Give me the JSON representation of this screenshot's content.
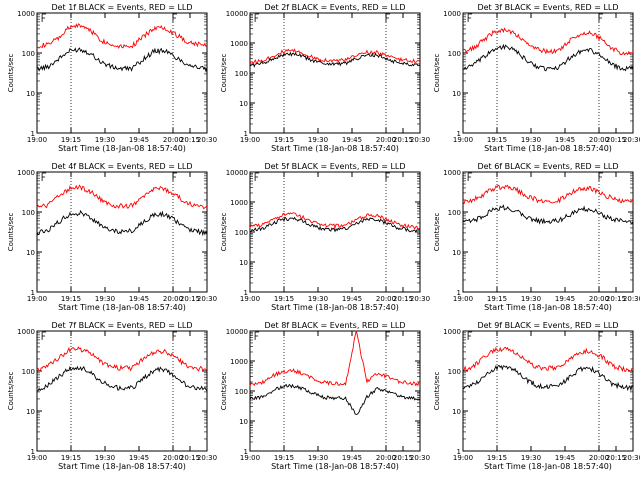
{
  "chart_data": [
    {
      "type": "line",
      "title": "Det 1f BLACK = Events, RED = LLD",
      "xlabel": "Start Time (18-Jan-08 18:57:40)",
      "ylabel": "Counts/sec",
      "x_ticks": [
        "19:00",
        "19:15",
        "19:30",
        "19:45",
        "20:00",
        "20:15",
        "20:30"
      ],
      "y_ticks": [
        "1",
        "10",
        "100",
        "1000"
      ],
      "yscale": "log",
      "ylim": [
        1,
        1000
      ],
      "series": [
        {
          "color": "#ff0000",
          "values": [
            150,
            160,
            230,
            420,
            500,
            380,
            210,
            160,
            150,
            155,
            250,
            420,
            440,
            300,
            200,
            170,
            165
          ]
        },
        {
          "color": "#000000",
          "values": [
            40,
            45,
            70,
            110,
            125,
            100,
            60,
            45,
            40,
            42,
            70,
            110,
            115,
            80,
            55,
            45,
            38
          ]
        }
      ]
    },
    {
      "type": "line",
      "title": "Det 2f BLACK = Events, RED = LLD",
      "xlabel": "Start Time (18-Jan-08 18:57:40)",
      "ylabel": "Counts/sec",
      "x_ticks": [
        "19:00",
        "19:15",
        "19:30",
        "19:45",
        "20:00",
        "20:15",
        "20:30"
      ],
      "y_ticks": [
        "1",
        "10",
        "100",
        "1000",
        "10000"
      ],
      "yscale": "log",
      "ylim": [
        1,
        10000
      ],
      "series": [
        {
          "color": "#ff0000",
          "values": [
            230,
            250,
            350,
            500,
            560,
            450,
            320,
            270,
            260,
            270,
            380,
            500,
            480,
            360,
            280,
            260,
            250
          ]
        },
        {
          "color": "#000000",
          "values": [
            180,
            200,
            280,
            390,
            430,
            350,
            250,
            210,
            200,
            210,
            300,
            390,
            380,
            280,
            220,
            200,
            190
          ]
        }
      ]
    },
    {
      "type": "line",
      "title": "Det 3f BLACK = Events, RED = LLD",
      "xlabel": "Start Time (18-Jan-08 18:57:40)",
      "ylabel": "Counts/sec",
      "x_ticks": [
        "19:00",
        "19:15",
        "19:30",
        "19:45",
        "20:00",
        "20:15",
        "20:30"
      ],
      "y_ticks": [
        "1",
        "10",
        "100",
        "1000"
      ],
      "yscale": "log",
      "ylim": [
        1,
        1000
      ],
      "series": [
        {
          "color": "#ff0000",
          "values": [
            110,
            130,
            220,
            350,
            380,
            290,
            170,
            120,
            110,
            115,
            200,
            300,
            320,
            230,
            130,
            100,
            95
          ]
        },
        {
          "color": "#000000",
          "values": [
            40,
            50,
            80,
            130,
            145,
            110,
            65,
            45,
            40,
            42,
            75,
            110,
            120,
            85,
            50,
            42,
            40
          ]
        }
      ]
    },
    {
      "type": "line",
      "title": "Det 4f BLACK = Events, RED = LLD",
      "xlabel": "Start Time (18-Jan-08 18:57:40)",
      "ylabel": "Counts/sec",
      "x_ticks": [
        "19:00",
        "19:15",
        "19:30",
        "19:45",
        "20:00",
        "20:15",
        "20:30"
      ],
      "y_ticks": [
        "1",
        "10",
        "100",
        "1000"
      ],
      "yscale": "log",
      "ylim": [
        1,
        1000
      ],
      "series": [
        {
          "color": "#ff0000",
          "values": [
            130,
            150,
            240,
            380,
            420,
            330,
            200,
            150,
            140,
            145,
            230,
            370,
            390,
            270,
            170,
            140,
            135
          ]
        },
        {
          "color": "#000000",
          "values": [
            30,
            35,
            55,
            85,
            95,
            75,
            45,
            35,
            32,
            34,
            55,
            85,
            90,
            62,
            40,
            33,
            30
          ]
        }
      ]
    },
    {
      "type": "line",
      "title": "Det 5f BLACK = Events, RED = LLD",
      "xlabel": "Start Time (18-Jan-08 18:57:40)",
      "ylabel": "Counts/sec",
      "x_ticks": [
        "19:00",
        "19:15",
        "19:30",
        "19:45",
        "20:00",
        "20:15",
        "20:30"
      ],
      "y_ticks": [
        "1",
        "10",
        "100",
        "1000",
        "10000"
      ],
      "yscale": "log",
      "ylim": [
        1,
        10000
      ],
      "series": [
        {
          "color": "#ff0000",
          "values": [
            150,
            170,
            240,
            360,
            400,
            310,
            210,
            170,
            160,
            170,
            250,
            360,
            350,
            250,
            180,
            150,
            140
          ]
        },
        {
          "color": "#000000",
          "values": [
            110,
            125,
            180,
            260,
            290,
            230,
            155,
            125,
            118,
            125,
            185,
            265,
            260,
            185,
            135,
            112,
            105
          ]
        }
      ]
    },
    {
      "type": "line",
      "title": "Det 6f BLACK = Events, RED = LLD",
      "xlabel": "Start Time (18-Jan-08 18:57:40)",
      "ylabel": "Counts/sec",
      "x_ticks": [
        "19:00",
        "19:15",
        "19:30",
        "19:45",
        "20:00",
        "20:15",
        "20:30"
      ],
      "y_ticks": [
        "1",
        "10",
        "100",
        "1000"
      ],
      "yscale": "log",
      "ylim": [
        1,
        1000
      ],
      "series": [
        {
          "color": "#ff0000",
          "values": [
            180,
            200,
            280,
            400,
            430,
            360,
            250,
            200,
            190,
            195,
            280,
            380,
            390,
            300,
            220,
            190,
            180
          ]
        },
        {
          "color": "#000000",
          "values": [
            55,
            60,
            85,
            120,
            130,
            110,
            75,
            60,
            58,
            60,
            85,
            115,
            120,
            90,
            65,
            58,
            55
          ]
        }
      ]
    },
    {
      "type": "line",
      "title": "Det 7f BLACK = Events, RED = LLD",
      "xlabel": "Start Time (18-Jan-08 18:57:40)",
      "ylabel": "Counts/sec",
      "x_ticks": [
        "19:00",
        "19:15",
        "19:30",
        "19:45",
        "20:00",
        "20:15",
        "20:30"
      ],
      "y_ticks": [
        "1",
        "10",
        "100",
        "1000"
      ],
      "yscale": "log",
      "ylim": [
        1,
        1000
      ],
      "series": [
        {
          "color": "#ff0000",
          "values": [
            110,
            130,
            210,
            330,
            360,
            280,
            170,
            125,
            115,
            120,
            200,
            300,
            310,
            220,
            140,
            115,
            110
          ]
        },
        {
          "color": "#000000",
          "values": [
            35,
            42,
            70,
            115,
            125,
            95,
            55,
            40,
            36,
            38,
            65,
            105,
            110,
            75,
            45,
            38,
            35
          ]
        }
      ]
    },
    {
      "type": "line",
      "title": "Det 8f BLACK = Events, RED = LLD",
      "xlabel": "Start Time (18-Jan-08 18:57:40)",
      "ylabel": "Counts/sec",
      "x_ticks": [
        "19:00",
        "19:15",
        "19:30",
        "19:45",
        "20:00",
        "20:15",
        "20:30"
      ],
      "y_ticks": [
        "1",
        "10",
        "100",
        "1000",
        "10000"
      ],
      "yscale": "log",
      "ylim": [
        1,
        10000
      ],
      "series": [
        {
          "color": "#ff0000",
          "values": [
            160,
            180,
            300,
            450,
            480,
            380,
            250,
            190,
            175,
            180,
            10000,
            200,
            380,
            300,
            210,
            180,
            170
          ]
        },
        {
          "color": "#000000",
          "values": [
            55,
            62,
            95,
            140,
            150,
            120,
            80,
            62,
            58,
            60,
            15,
            65,
            120,
            95,
            68,
            58,
            55
          ]
        }
      ]
    },
    {
      "type": "line",
      "title": "Det 9f BLACK = Events, RED = LLD",
      "xlabel": "Start Time (18-Jan-08 18:57:40)",
      "ylabel": "Counts/sec",
      "x_ticks": [
        "19:00",
        "19:15",
        "19:30",
        "19:45",
        "20:00",
        "20:15",
        "20:30"
      ],
      "y_ticks": [
        "1",
        "10",
        "100",
        "1000"
      ],
      "yscale": "log",
      "ylim": [
        1,
        1000
      ],
      "series": [
        {
          "color": "#ff0000",
          "values": [
            110,
            130,
            220,
            340,
            360,
            280,
            170,
            125,
            118,
            122,
            200,
            300,
            320,
            230,
            140,
            112,
            105
          ]
        },
        {
          "color": "#000000",
          "values": [
            38,
            45,
            75,
            120,
            130,
            100,
            60,
            43,
            40,
            42,
            70,
            110,
            115,
            80,
            48,
            40,
            38
          ]
        }
      ]
    }
  ]
}
